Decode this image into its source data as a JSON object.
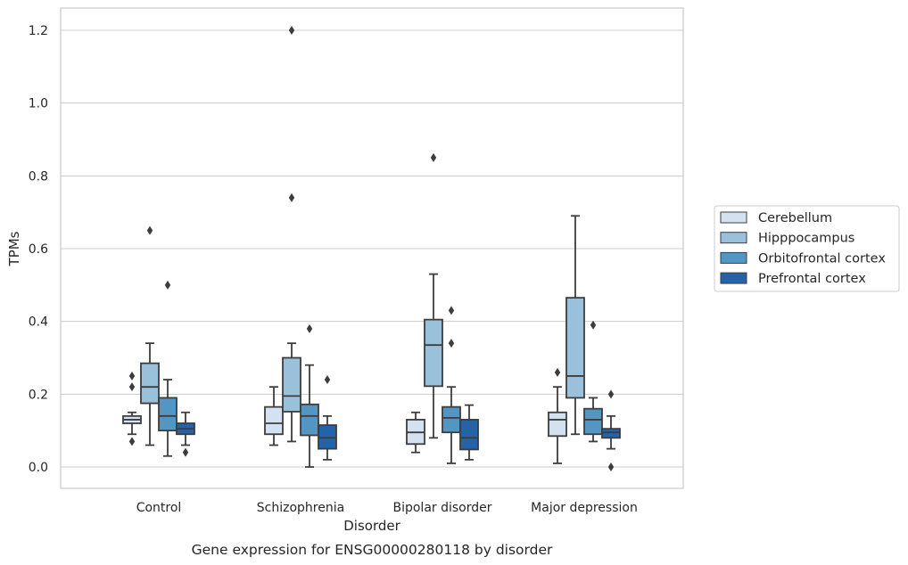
{
  "chart_data": {
    "type": "box",
    "caption": "Gene expression for ENSG00000280118 by disorder",
    "xlabel": "Disorder",
    "ylabel": "TPMs",
    "ylim": [
      -0.06,
      1.26
    ],
    "yticks": [
      0.0,
      0.2,
      0.4,
      0.6,
      0.8,
      1.0,
      1.2
    ],
    "ytick_labels": [
      "0.0",
      "0.2",
      "0.4",
      "0.6",
      "0.8",
      "1.0",
      "1.2"
    ],
    "grid": "horizontal",
    "legend_position": "right",
    "categories": [
      "Control",
      "Schizophrenia",
      "Bipolar disorder",
      "Major depression"
    ],
    "series": [
      {
        "name": "Cerebellum",
        "color": "#d4e1f0",
        "boxes": [
          {
            "whislo": 0.09,
            "q1": 0.12,
            "med": 0.13,
            "q3": 0.14,
            "whishi": 0.15,
            "fliers": [
              0.25,
              0.22,
              0.07
            ]
          },
          {
            "whislo": 0.06,
            "q1": 0.09,
            "med": 0.12,
            "q3": 0.165,
            "whishi": 0.22,
            "fliers": []
          },
          {
            "whislo": 0.04,
            "q1": 0.063,
            "med": 0.095,
            "q3": 0.13,
            "whishi": 0.15,
            "fliers": []
          },
          {
            "whislo": 0.01,
            "q1": 0.085,
            "med": 0.13,
            "q3": 0.15,
            "whishi": 0.22,
            "fliers": [
              0.26
            ]
          }
        ]
      },
      {
        "name": "Hipppocampus",
        "color": "#9ac1dc",
        "boxes": [
          {
            "whislo": 0.06,
            "q1": 0.175,
            "med": 0.22,
            "q3": 0.285,
            "whishi": 0.34,
            "fliers": [
              0.65
            ]
          },
          {
            "whislo": 0.07,
            "q1": 0.152,
            "med": 0.195,
            "q3": 0.3,
            "whishi": 0.34,
            "fliers": [
              1.2,
              0.74
            ]
          },
          {
            "whislo": 0.08,
            "q1": 0.222,
            "med": 0.335,
            "q3": 0.405,
            "whishi": 0.53,
            "fliers": [
              0.85
            ]
          },
          {
            "whislo": 0.09,
            "q1": 0.19,
            "med": 0.25,
            "q3": 0.465,
            "whishi": 0.69,
            "fliers": []
          }
        ]
      },
      {
        "name": "Orbitofrontal cortex",
        "color": "#5496c3",
        "boxes": [
          {
            "whislo": 0.03,
            "q1": 0.1,
            "med": 0.14,
            "q3": 0.19,
            "whishi": 0.24,
            "fliers": [
              0.5
            ]
          },
          {
            "whislo": 0.0,
            "q1": 0.087,
            "med": 0.14,
            "q3": 0.172,
            "whishi": 0.28,
            "fliers": [
              0.38
            ]
          },
          {
            "whislo": 0.01,
            "q1": 0.095,
            "med": 0.135,
            "q3": 0.165,
            "whishi": 0.22,
            "fliers": [
              0.43,
              0.34
            ]
          },
          {
            "whislo": 0.07,
            "q1": 0.09,
            "med": 0.13,
            "q3": 0.16,
            "whishi": 0.19,
            "fliers": [
              0.39
            ]
          }
        ]
      },
      {
        "name": "Prefrontal cortex",
        "color": "#2463a8",
        "boxes": [
          {
            "whislo": 0.06,
            "q1": 0.09,
            "med": 0.105,
            "q3": 0.12,
            "whishi": 0.15,
            "fliers": [
              0.04
            ]
          },
          {
            "whislo": 0.02,
            "q1": 0.05,
            "med": 0.08,
            "q3": 0.115,
            "whishi": 0.14,
            "fliers": [
              0.24
            ]
          },
          {
            "whislo": 0.02,
            "q1": 0.048,
            "med": 0.08,
            "q3": 0.13,
            "whishi": 0.17,
            "fliers": []
          },
          {
            "whislo": 0.05,
            "q1": 0.08,
            "med": 0.095,
            "q3": 0.105,
            "whishi": 0.14,
            "fliers": [
              0.2,
              0.0
            ]
          }
        ]
      }
    ]
  }
}
